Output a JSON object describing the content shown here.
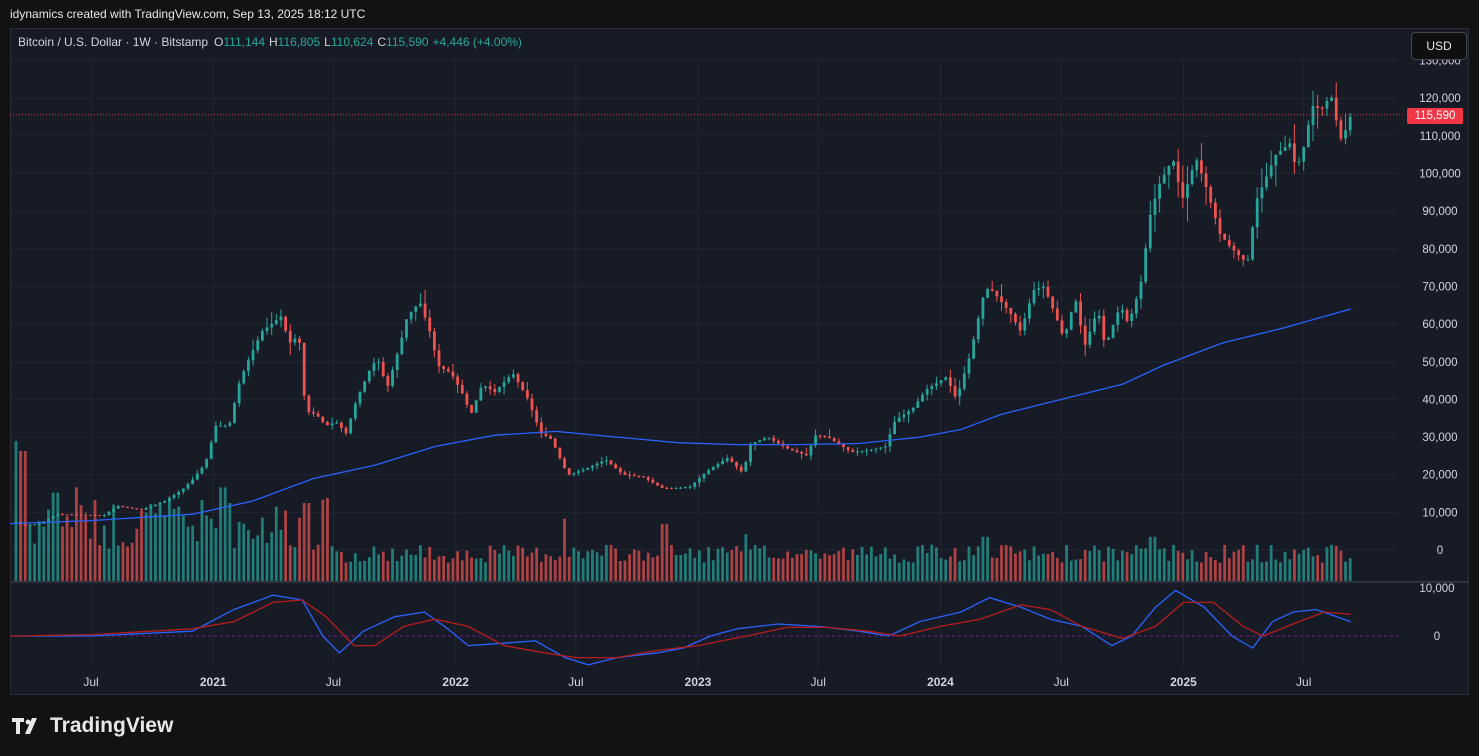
{
  "header": {
    "created_by": "idynamics created with TradingView.com, Sep 13, 2025 18:12 UTC"
  },
  "legend": {
    "symbol": "Bitcoin / U.S. Dollar · 1W · Bitstamp",
    "o_label": "O",
    "o_value": "111,144",
    "h_label": "H",
    "h_value": "116,805",
    "l_label": "L",
    "l_value": "110,624",
    "c_label": "C",
    "c_value": "115,590",
    "change": "+4,446 (+4.00%)"
  },
  "currency_button": "USD",
  "last_price_label": "115,590",
  "brand": {
    "name": "TradingView"
  },
  "colors": {
    "up": "#26a69a",
    "down": "#ef5350",
    "ma": "#2962ff",
    "osc_fast": "#2962ff",
    "osc_slow": "#b71c1c",
    "last_price": "#f23645"
  },
  "chart_data": {
    "type": "candlestick",
    "interval": "1W",
    "x_range": [
      "2020-03-01",
      "2025-11-20"
    ],
    "price_ylim": [
      -5000,
      130000
    ],
    "price_ticks": [
      "0",
      "10,000",
      "20,000",
      "30,000",
      "40,000",
      "50,000",
      "60,000",
      "70,000",
      "80,000",
      "90,000",
      "100,000",
      "110,000",
      "120,000",
      "130,000"
    ],
    "oscillator_ticks": [
      "0",
      "10,000"
    ],
    "x_ticks": [
      {
        "label": "Jul",
        "date": "2020-07-01"
      },
      {
        "label": "2021",
        "date": "2021-01-01"
      },
      {
        "label": "Jul",
        "date": "2021-07-01"
      },
      {
        "label": "2022",
        "date": "2022-01-01"
      },
      {
        "label": "Jul",
        "date": "2022-07-01"
      },
      {
        "label": "2023",
        "date": "2023-01-01"
      },
      {
        "label": "Jul",
        "date": "2023-07-01"
      },
      {
        "label": "2024",
        "date": "2024-01-01"
      },
      {
        "label": "Jul",
        "date": "2024-07-01"
      },
      {
        "label": "2025",
        "date": "2025-01-01"
      },
      {
        "label": "Jul",
        "date": "2025-07-01"
      }
    ],
    "price_path": [
      [
        "2020-03-10",
        7500
      ],
      [
        "2020-03-20",
        6500
      ],
      [
        "2020-04-15",
        7000
      ],
      [
        "2020-05-10",
        9500
      ],
      [
        "2020-06-15",
        9400
      ],
      [
        "2020-07-20",
        9200
      ],
      [
        "2020-08-10",
        11700
      ],
      [
        "2020-09-15",
        10700
      ],
      [
        "2020-10-20",
        13000
      ],
      [
        "2020-11-15",
        16000
      ],
      [
        "2020-11-30",
        18500
      ],
      [
        "2020-12-20",
        23000
      ],
      [
        "2021-01-05",
        33000
      ],
      [
        "2021-01-25",
        33000
      ],
      [
        "2021-02-10",
        45000
      ],
      [
        "2021-02-22",
        50000
      ],
      [
        "2021-03-15",
        58000
      ],
      [
        "2021-04-13",
        62000
      ],
      [
        "2021-04-26",
        55000
      ],
      [
        "2021-05-10",
        57000
      ],
      [
        "2021-05-20",
        37000
      ],
      [
        "2021-06-05",
        36000
      ],
      [
        "2021-06-20",
        33000
      ],
      [
        "2021-07-05",
        34000
      ],
      [
        "2021-07-20",
        31000
      ],
      [
        "2021-08-05",
        40000
      ],
      [
        "2021-08-25",
        48000
      ],
      [
        "2021-09-05",
        51000
      ],
      [
        "2021-09-20",
        43000
      ],
      [
        "2021-10-10",
        55000
      ],
      [
        "2021-10-20",
        62000
      ],
      [
        "2021-11-08",
        66000
      ],
      [
        "2021-11-25",
        57000
      ],
      [
        "2021-12-05",
        49000
      ],
      [
        "2021-12-25",
        47000
      ],
      [
        "2022-01-10",
        42000
      ],
      [
        "2022-01-24",
        36000
      ],
      [
        "2022-02-10",
        44000
      ],
      [
        "2022-03-01",
        42000
      ],
      [
        "2022-03-28",
        47000
      ],
      [
        "2022-04-20",
        40000
      ],
      [
        "2022-05-09",
        31000
      ],
      [
        "2022-05-25",
        29500
      ],
      [
        "2022-06-13",
        22000
      ],
      [
        "2022-06-20",
        20000
      ],
      [
        "2022-07-15",
        21500
      ],
      [
        "2022-08-15",
        24000
      ],
      [
        "2022-09-10",
        20000
      ],
      [
        "2022-10-10",
        19500
      ],
      [
        "2022-11-07",
        16500
      ],
      [
        "2022-11-25",
        16400
      ],
      [
        "2022-12-20",
        16800
      ],
      [
        "2023-01-15",
        21000
      ],
      [
        "2023-02-15",
        24500
      ],
      [
        "2023-03-10",
        20300
      ],
      [
        "2023-03-20",
        28000
      ],
      [
        "2023-04-15",
        30000
      ],
      [
        "2023-05-15",
        27000
      ],
      [
        "2023-06-15",
        25000
      ],
      [
        "2023-06-25",
        30500
      ],
      [
        "2023-07-15",
        30000
      ],
      [
        "2023-08-20",
        26000
      ],
      [
        "2023-09-15",
        26500
      ],
      [
        "2023-10-10",
        27500
      ],
      [
        "2023-10-25",
        34500
      ],
      [
        "2023-11-20",
        37500
      ],
      [
        "2023-12-10",
        42500
      ],
      [
        "2024-01-10",
        46000
      ],
      [
        "2024-01-25",
        40000
      ],
      [
        "2024-02-15",
        52000
      ],
      [
        "2024-03-05",
        67000
      ],
      [
        "2024-03-14",
        70000
      ],
      [
        "2024-04-15",
        63000
      ],
      [
        "2024-05-01",
        58000
      ],
      [
        "2024-05-20",
        69000
      ],
      [
        "2024-06-05",
        70000
      ],
      [
        "2024-06-25",
        61000
      ],
      [
        "2024-07-05",
        56000
      ],
      [
        "2024-07-22",
        67000
      ],
      [
        "2024-08-05",
        54000
      ],
      [
        "2024-08-25",
        64000
      ],
      [
        "2024-09-05",
        54000
      ],
      [
        "2024-09-28",
        65000
      ],
      [
        "2024-10-10",
        60000
      ],
      [
        "2024-10-28",
        70000
      ],
      [
        "2024-11-12",
        89000
      ],
      [
        "2024-11-25",
        97000
      ],
      [
        "2024-12-16",
        104000
      ],
      [
        "2024-12-30",
        93000
      ],
      [
        "2025-01-20",
        104000
      ],
      [
        "2025-02-03",
        97000
      ],
      [
        "2025-02-25",
        84000
      ],
      [
        "2025-03-10",
        81000
      ],
      [
        "2025-04-07",
        76000
      ],
      [
        "2025-04-21",
        93000
      ],
      [
        "2025-05-20",
        105000
      ],
      [
        "2025-06-10",
        108000
      ],
      [
        "2025-06-20",
        101000
      ],
      [
        "2025-07-01",
        107000
      ],
      [
        "2025-07-14",
        118000
      ],
      [
        "2025-07-28",
        117000
      ],
      [
        "2025-08-11",
        121000
      ],
      [
        "2025-08-25",
        109000
      ],
      [
        "2025-09-01",
        111000
      ],
      [
        "2025-09-10",
        115590
      ]
    ],
    "ma_path": [
      [
        "2020-03-01",
        7000
      ],
      [
        "2020-07-01",
        7800
      ],
      [
        "2020-12-01",
        9500
      ],
      [
        "2021-03-01",
        13000
      ],
      [
        "2021-06-01",
        19000
      ],
      [
        "2021-09-01",
        22500
      ],
      [
        "2021-12-01",
        27500
      ],
      [
        "2022-03-01",
        30500
      ],
      [
        "2022-06-01",
        31500
      ],
      [
        "2022-09-01",
        30000
      ],
      [
        "2022-12-01",
        28500
      ],
      [
        "2023-03-01",
        28000
      ],
      [
        "2023-06-01",
        28000
      ],
      [
        "2023-09-01",
        28300
      ],
      [
        "2023-12-01",
        30000
      ],
      [
        "2024-02-01",
        32000
      ],
      [
        "2024-04-01",
        36000
      ],
      [
        "2024-07-01",
        40000
      ],
      [
        "2024-10-01",
        44000
      ],
      [
        "2024-12-01",
        49000
      ],
      [
        "2025-03-01",
        55000
      ],
      [
        "2025-06-01",
        59000
      ],
      [
        "2025-09-10",
        64000
      ]
    ],
    "volume_spikes": [
      [
        "2020-03-15",
        28500
      ],
      [
        "2020-03-20",
        25000
      ],
      [
        "2020-05-10",
        17000
      ],
      [
        "2020-06-10",
        18000
      ],
      [
        "2020-10-10",
        13000
      ],
      [
        "2021-01-15",
        18000
      ],
      [
        "2021-02-15",
        11000
      ],
      [
        "2021-05-20",
        15000
      ],
      [
        "2022-06-15",
        12000
      ],
      [
        "2022-11-10",
        11000
      ],
      [
        "2023-03-15",
        9000
      ],
      [
        "2024-03-10",
        8500
      ],
      [
        "2024-11-15",
        8500
      ]
    ],
    "osc_fast": [
      [
        "2020-03-01",
        0
      ],
      [
        "2020-07-01",
        0
      ],
      [
        "2020-12-01",
        1000
      ],
      [
        "2021-02-01",
        5500
      ],
      [
        "2021-04-01",
        8500
      ],
      [
        "2021-05-15",
        7500
      ],
      [
        "2021-06-15",
        0
      ],
      [
        "2021-07-10",
        -3500
      ],
      [
        "2021-08-15",
        1000
      ],
      [
        "2021-10-01",
        4000
      ],
      [
        "2021-11-15",
        5000
      ],
      [
        "2021-12-20",
        1500
      ],
      [
        "2022-01-20",
        -2000
      ],
      [
        "2022-03-15",
        -1500
      ],
      [
        "2022-05-01",
        -1000
      ],
      [
        "2022-06-15",
        -4500
      ],
      [
        "2022-07-20",
        -6000
      ],
      [
        "2022-09-01",
        -4500
      ],
      [
        "2022-11-01",
        -3500
      ],
      [
        "2022-12-10",
        -2500
      ],
      [
        "2023-01-20",
        0
      ],
      [
        "2023-03-01",
        1500
      ],
      [
        "2023-05-01",
        2500
      ],
      [
        "2023-07-01",
        2000
      ],
      [
        "2023-09-01",
        1000
      ],
      [
        "2023-10-15",
        0
      ],
      [
        "2023-12-01",
        3000
      ],
      [
        "2024-02-01",
        5000
      ],
      [
        "2024-03-15",
        8000
      ],
      [
        "2024-05-01",
        6000
      ],
      [
        "2024-06-15",
        3500
      ],
      [
        "2024-08-01",
        2000
      ],
      [
        "2024-09-15",
        -2000
      ],
      [
        "2024-10-15",
        0
      ],
      [
        "2024-11-20",
        6000
      ],
      [
        "2024-12-20",
        9500
      ],
      [
        "2025-02-01",
        6000
      ],
      [
        "2025-03-15",
        0
      ],
      [
        "2025-04-15",
        -2500
      ],
      [
        "2025-05-15",
        3000
      ],
      [
        "2025-06-15",
        5000
      ],
      [
        "2025-07-20",
        5500
      ],
      [
        "2025-09-10",
        3000
      ]
    ],
    "osc_slow": [
      [
        "2020-03-01",
        0
      ],
      [
        "2020-07-01",
        300
      ],
      [
        "2020-12-01",
        1500
      ],
      [
        "2021-02-01",
        3000
      ],
      [
        "2021-04-01",
        7000
      ],
      [
        "2021-05-15",
        7500
      ],
      [
        "2021-06-20",
        4000
      ],
      [
        "2021-08-01",
        -2000
      ],
      [
        "2021-09-01",
        -2000
      ],
      [
        "2021-10-15",
        2000
      ],
      [
        "2021-12-01",
        3500
      ],
      [
        "2022-01-20",
        2000
      ],
      [
        "2022-03-15",
        -2000
      ],
      [
        "2022-05-15",
        -3500
      ],
      [
        "2022-07-01",
        -4500
      ],
      [
        "2022-09-01",
        -4500
      ],
      [
        "2022-11-01",
        -3000
      ],
      [
        "2023-01-01",
        -2000
      ],
      [
        "2023-03-15",
        0
      ],
      [
        "2023-05-15",
        1800
      ],
      [
        "2023-07-15",
        1800
      ],
      [
        "2023-09-15",
        1000
      ],
      [
        "2023-11-01",
        0
      ],
      [
        "2024-01-01",
        2000
      ],
      [
        "2024-03-01",
        3500
      ],
      [
        "2024-05-01",
        6500
      ],
      [
        "2024-06-15",
        5500
      ],
      [
        "2024-08-01",
        2000
      ],
      [
        "2024-10-01",
        -500
      ],
      [
        "2024-11-20",
        2000
      ],
      [
        "2025-01-01",
        7000
      ],
      [
        "2025-02-15",
        7000
      ],
      [
        "2025-04-01",
        2000
      ],
      [
        "2025-05-01",
        0
      ],
      [
        "2025-06-15",
        2500
      ],
      [
        "2025-08-01",
        5000
      ],
      [
        "2025-09-10",
        4500
      ]
    ]
  }
}
